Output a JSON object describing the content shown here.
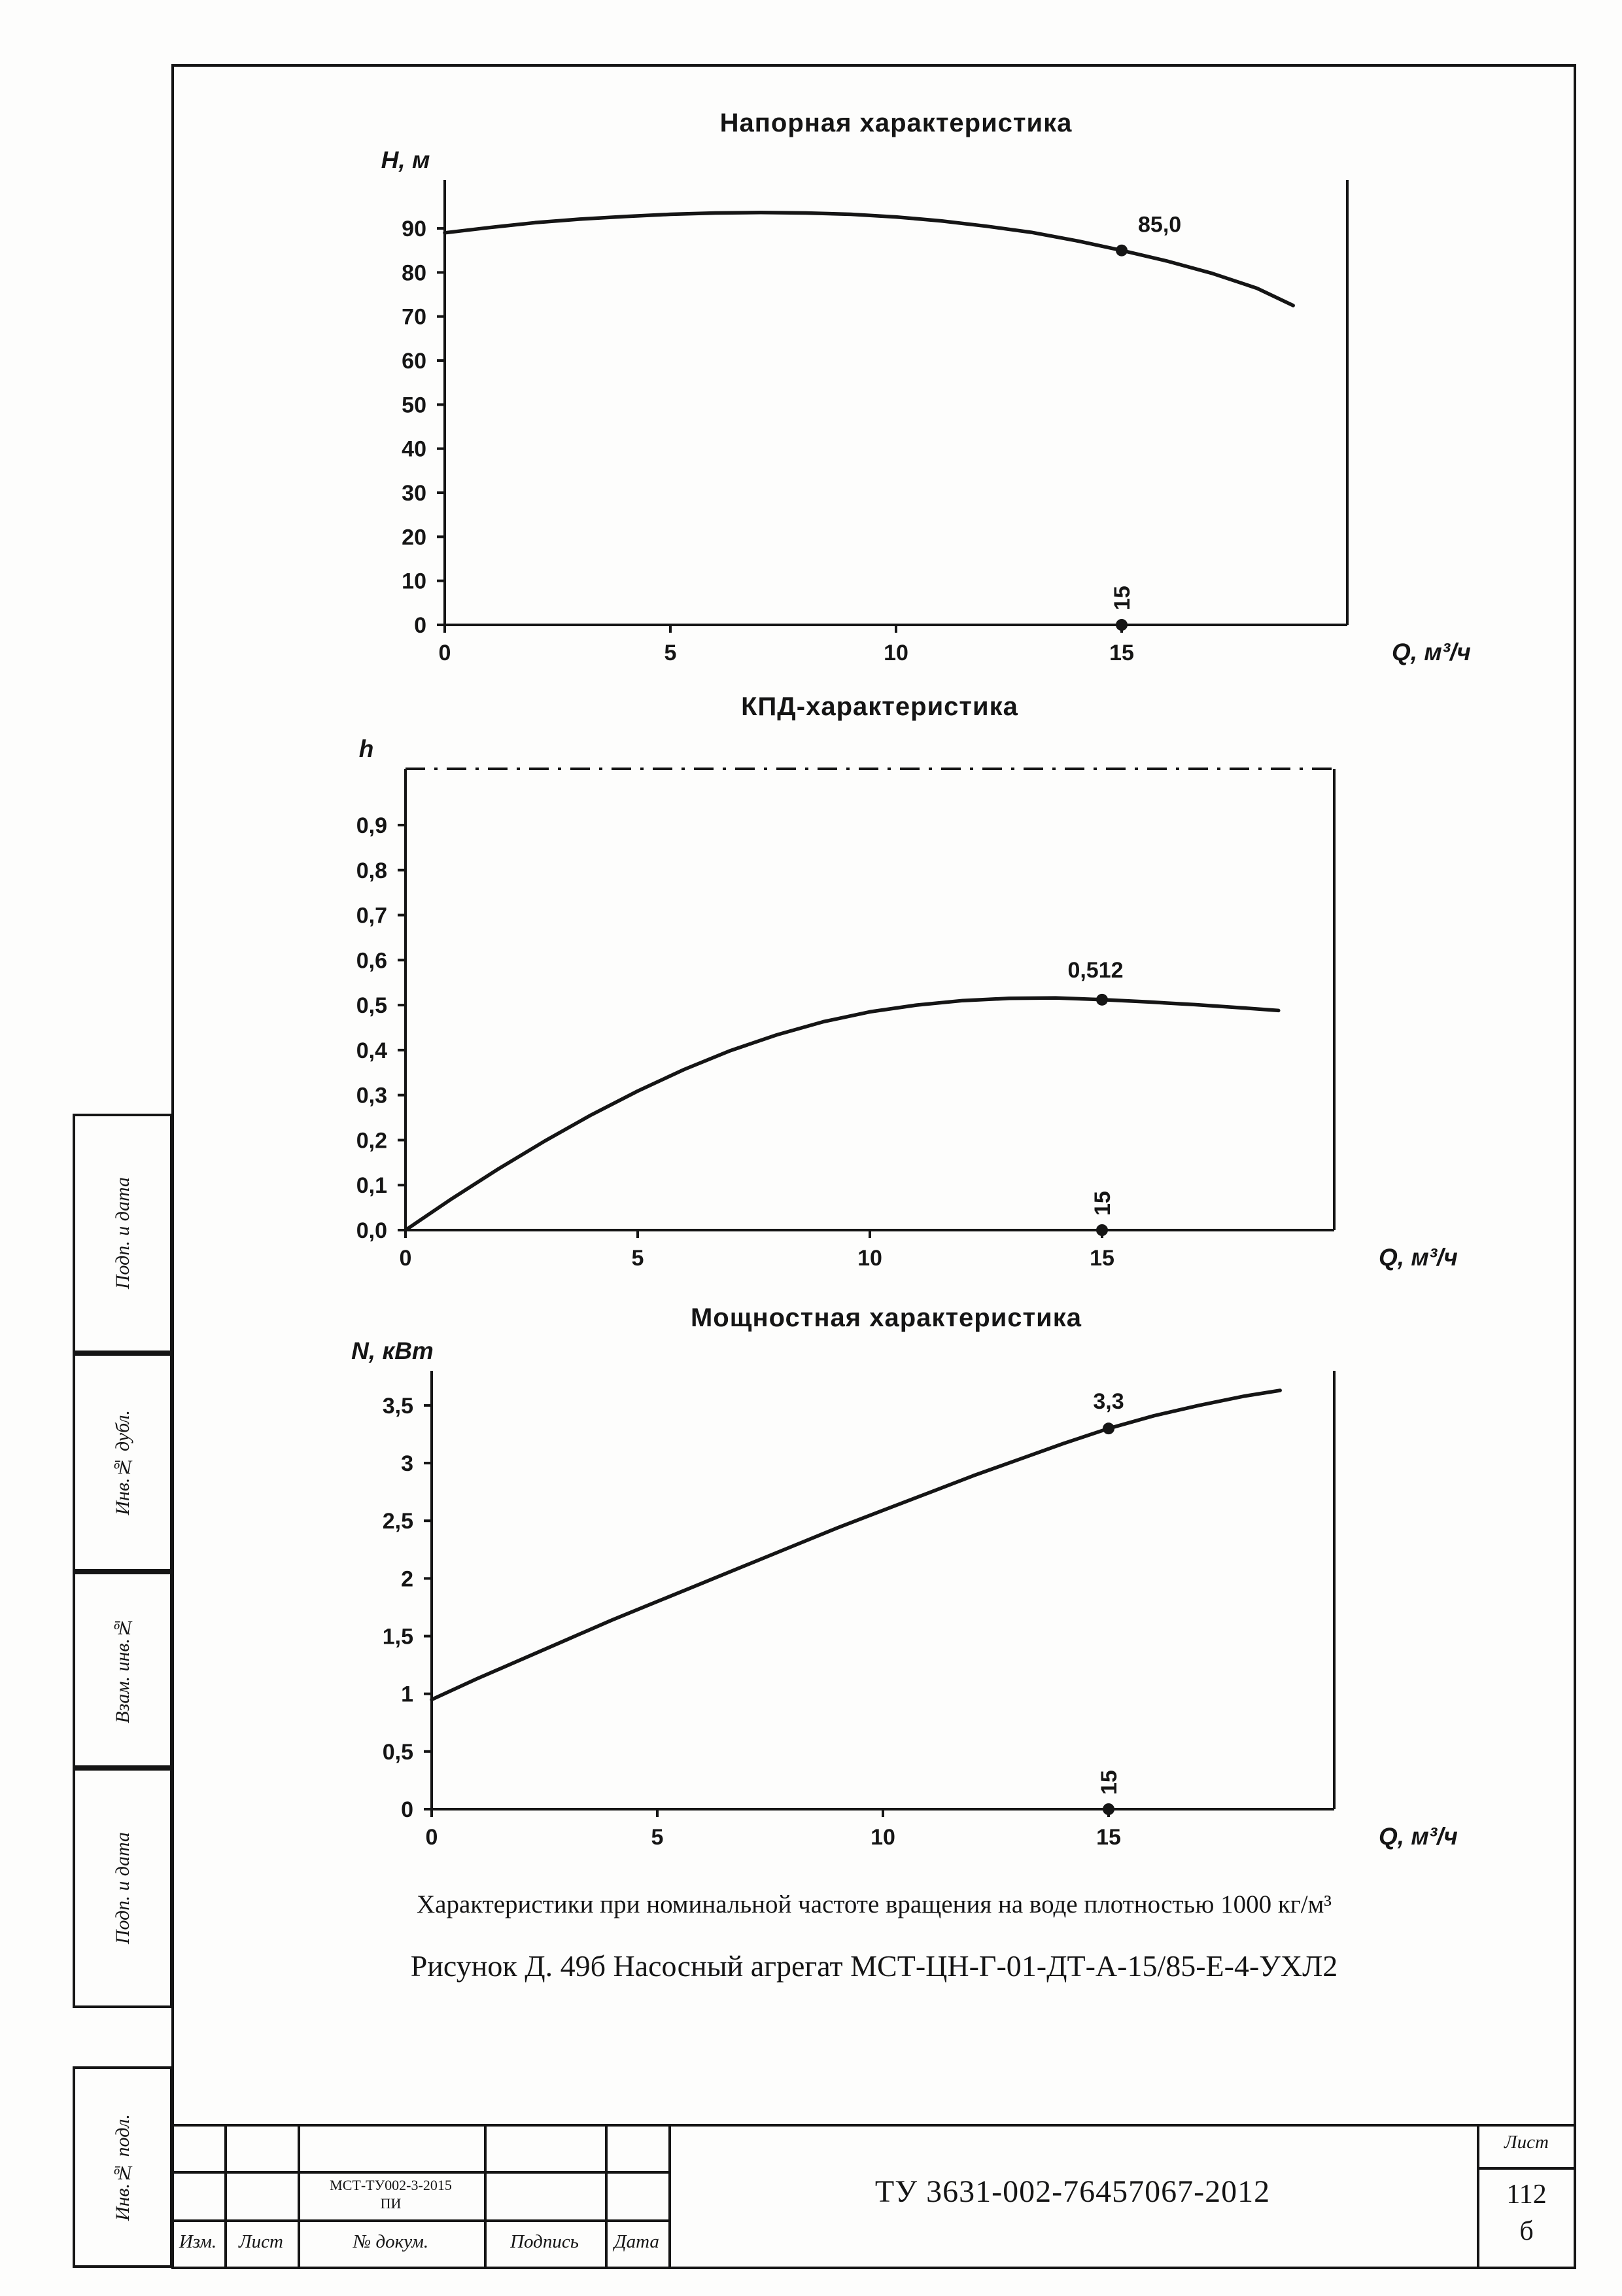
{
  "page": {
    "caption1": "Характеристики при номинальной частоте вращения на воде плотностью 1000 кг/м³",
    "caption2": "Рисунок Д. 49б Насосный агрегат МСТ-ЦН-Г-01-ДТ-А-15/85-Е-4-УХЛ2"
  },
  "side_stamp": {
    "labels": [
      "Подп. и дата",
      "Инв.№ дубл.",
      "Взам. инв.№",
      "Подп. и дата",
      "Инв.№ подл."
    ]
  },
  "title_block": {
    "doc_code_line1": "МСТ-ТУ002-3-2015",
    "doc_code_line2": "ПИ",
    "col_izm": "Изм.",
    "col_list": "Лист",
    "col_docnum": "№ докум.",
    "col_podpis": "Подпись",
    "col_data": "Дата",
    "main_code": "ТУ 3631-002-76457067-2012",
    "sheet_label": "Лист",
    "sheet_num": "112",
    "sheet_suffix": "б"
  },
  "chart_data": [
    {
      "type": "line",
      "title": "Напорная характеристика",
      "ylabel": "H, м",
      "xlabel": "Q, м³/ч",
      "xlim": [
        0,
        20
      ],
      "ylim": [
        0,
        101
      ],
      "xticks": [
        0,
        5,
        10,
        15
      ],
      "xtick_labels": [
        "0",
        "5",
        "10",
        "15"
      ],
      "yticks": [
        0,
        10,
        20,
        30,
        40,
        50,
        60,
        70,
        80,
        90
      ],
      "ytick_labels": [
        "0",
        "10",
        "20",
        "30",
        "40",
        "50",
        "60",
        "70",
        "80",
        "90"
      ],
      "x": [
        0,
        1,
        2,
        3,
        4,
        5,
        6,
        7,
        8,
        9,
        10,
        11,
        12,
        13,
        14,
        15,
        16,
        17,
        18,
        18.8
      ],
      "y": [
        89,
        90.2,
        91.3,
        92.1,
        92.7,
        93.2,
        93.5,
        93.6,
        93.5,
        93.2,
        92.6,
        91.7,
        90.5,
        89.1,
        87.2,
        85,
        82.6,
        79.8,
        76.4,
        72.5
      ],
      "point": {
        "x": 15,
        "y": 85,
        "label": "85,0"
      },
      "axis_point": {
        "x": 15,
        "y": 0,
        "label": "15"
      }
    },
    {
      "type": "line",
      "title": "КПД-характеристика",
      "ylabel": "h",
      "xlabel": "Q, м³/ч",
      "xlim": [
        0,
        20
      ],
      "ylim": [
        0,
        1.025
      ],
      "xticks": [
        0,
        5,
        10,
        15
      ],
      "xtick_labels": [
        "0",
        "5",
        "10",
        "15"
      ],
      "yticks": [
        0,
        0.1,
        0.2,
        0.3,
        0.4,
        0.5,
        0.6,
        0.7,
        0.8,
        0.9
      ],
      "ytick_labels": [
        "0,0",
        "0,1",
        "0,2",
        "0,3",
        "0,4",
        "0,5",
        "0,6",
        "0,7",
        "0,8",
        "0,9"
      ],
      "x": [
        0,
        1,
        2,
        3,
        4,
        5,
        6,
        7,
        8,
        9,
        10,
        11,
        12,
        13,
        14,
        15,
        16,
        17,
        18,
        18.8
      ],
      "y": [
        0,
        0.07,
        0.136,
        0.198,
        0.256,
        0.309,
        0.357,
        0.399,
        0.434,
        0.463,
        0.485,
        0.5,
        0.51,
        0.515,
        0.516,
        0.512,
        0.507,
        0.501,
        0.494,
        0.488
      ],
      "point": {
        "x": 15,
        "y": 0.512,
        "label": "0,512"
      },
      "axis_point": {
        "x": 15,
        "y": 0,
        "label": "15"
      },
      "top_border": "dash-dot"
    },
    {
      "type": "line",
      "title": "Мощностная характеристика",
      "ylabel": "N, кВт",
      "xlabel": "Q, м³/ч",
      "xlim": [
        0,
        20
      ],
      "ylim": [
        0,
        3.8
      ],
      "xticks": [
        0,
        5,
        10,
        15
      ],
      "xtick_labels": [
        "0",
        "5",
        "10",
        "15"
      ],
      "yticks": [
        0,
        0.5,
        1,
        1.5,
        2,
        2.5,
        3,
        3.5
      ],
      "ytick_labels": [
        "0",
        "0,5",
        "1",
        "1,5",
        "2",
        "2,5",
        "3",
        "3,5"
      ],
      "x": [
        0,
        1,
        2,
        3,
        4,
        5,
        6,
        7,
        8,
        9,
        10,
        11,
        12,
        13,
        14,
        15,
        16,
        17,
        18,
        18.8
      ],
      "y": [
        0.95,
        1.13,
        1.3,
        1.47,
        1.64,
        1.8,
        1.96,
        2.12,
        2.28,
        2.44,
        2.59,
        2.74,
        2.89,
        3.03,
        3.17,
        3.3,
        3.41,
        3.5,
        3.58,
        3.63
      ],
      "point": {
        "x": 15,
        "y": 3.3,
        "label": "3,3"
      },
      "axis_point": {
        "x": 15,
        "y": 0,
        "label": "15"
      }
    }
  ]
}
